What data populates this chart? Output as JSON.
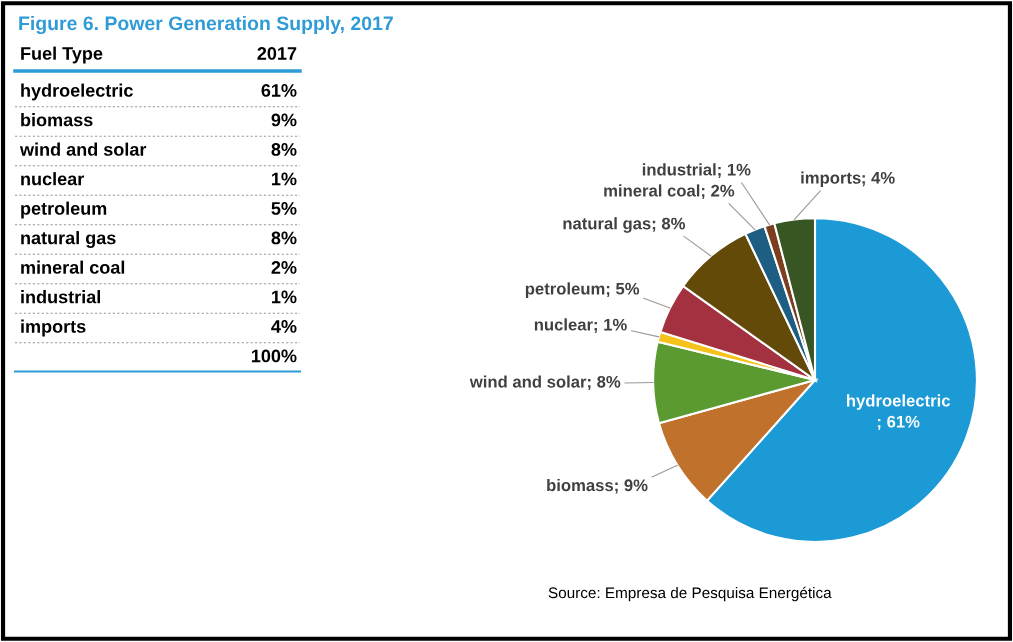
{
  "chart_data": [
    {
      "type": "other",
      "title": "Figure 6. Power Generation Supply, 2017",
      "annotations": [
        "Fuel Type",
        "2017"
      ],
      "categories": [
        "hydroelectric",
        "biomass",
        "wind and solar",
        "nuclear",
        "petroleum",
        "natural gas",
        "mineral coal",
        "industrial",
        "imports"
      ],
      "values": [
        61,
        9,
        8,
        1,
        5,
        8,
        2,
        1,
        4
      ],
      "value_labels": [
        "61%",
        "9%",
        "8%",
        "1%",
        "5%",
        "8%",
        "2%",
        "1%",
        "4%"
      ],
      "totals": [
        "100%"
      ]
    },
    {
      "type": "pie",
      "categories": [
        "hydroelectric",
        "biomass",
        "wind and solar",
        "nuclear",
        "petroleum",
        "natural gas",
        "mineral coal",
        "industrial",
        "imports"
      ],
      "values": [
        61,
        9,
        8,
        1,
        5,
        8,
        2,
        1,
        4
      ],
      "colors": [
        "#1b9ad6",
        "#c0712b",
        "#5b9a31",
        "#f5c21b",
        "#a4313f",
        "#634a09",
        "#1d5e82",
        "#7b3f1f",
        "#375623"
      ],
      "value_labels": [
        "; 61%",
        "; 9%",
        "; 8%",
        "; 1%",
        "; 5%",
        "; 8%",
        "; 2%",
        "; 1%",
        "; 4%"
      ],
      "annotations": [
        "Source: Empresa de Pesquisa Energética"
      ]
    }
  ]
}
